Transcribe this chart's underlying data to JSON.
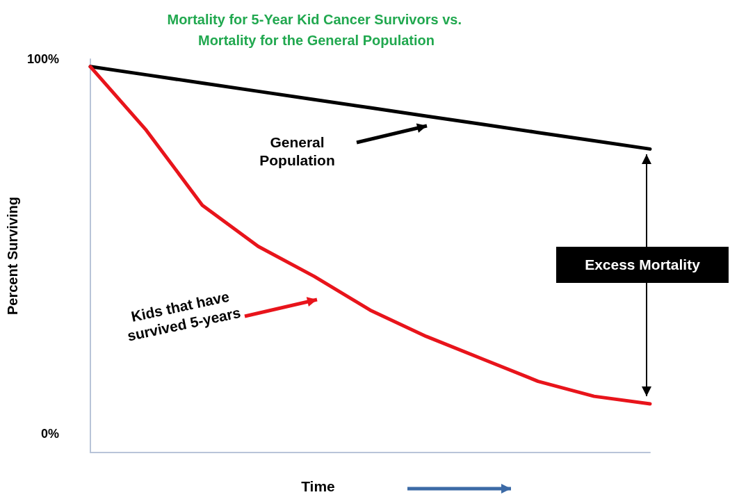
{
  "chart_data": {
    "type": "line",
    "title": "Mortality for 5-Year Kid Cancer Survivors vs. Mortality for the General Population",
    "ylabel": "Percent Surviving",
    "xlabel": "Time",
    "categories": [
      null,
      null,
      null,
      null,
      null,
      null,
      null,
      null,
      null,
      null,
      null
    ],
    "series": [
      {
        "color": "#000000",
        "values": [
          98,
          95.8,
          93.6,
          91.4,
          89.2,
          87,
          84.8,
          82.6,
          80.4,
          78.2,
          76
        ]
      },
      {
        "color": "#e8141b",
        "values": [
          98,
          81,
          61,
          50,
          42,
          33,
          26,
          20,
          14,
          10,
          8
        ]
      }
    ],
    "ylim": [
      -5,
      100
    ],
    "yticks": [
      {
        "value": 0,
        "label": "0%"
      },
      {
        "value": 100,
        "label": "100%"
      }
    ],
    "tick_labels": "y",
    "grid": false,
    "marker": "none",
    "line_style": "solid",
    "annotations": [
      "General Population",
      "Kids that have survived 5-years",
      "Excess Mortality"
    ]
  }
}
